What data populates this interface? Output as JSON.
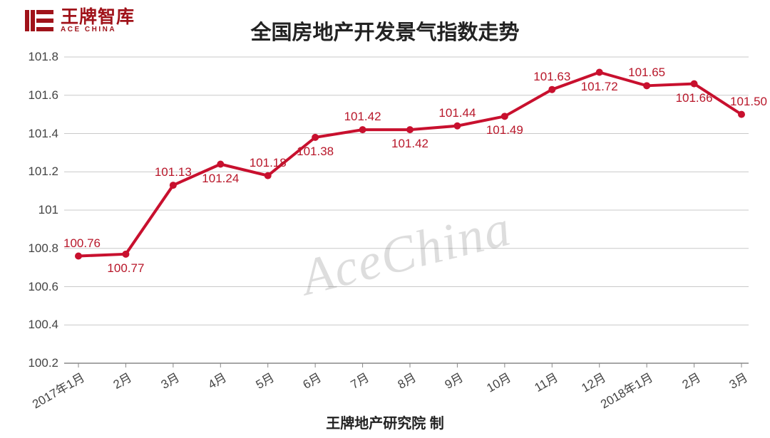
{
  "logo": {
    "cn": "王牌智库",
    "en": "ACE CHINA",
    "color": "#a0131a"
  },
  "title": "全国房地产开发景气指数走势",
  "footer": "王牌地产研究院 制",
  "watermark": "AceChina",
  "chart": {
    "type": "line",
    "background_color": "#ffffff",
    "grid_color": "#c9c9c9",
    "axis_color": "#888888",
    "line_color": "#c8102e",
    "marker_color": "#c8102e",
    "line_width": 4,
    "marker_radius": 5,
    "ylim": [
      100.2,
      101.8
    ],
    "ytick_step": 0.2,
    "yticks": [
      100.2,
      100.4,
      100.6,
      100.8,
      101,
      101.2,
      101.4,
      101.6,
      101.8
    ],
    "categories": [
      "2017年1月",
      "2月",
      "3月",
      "4月",
      "5月",
      "6月",
      "7月",
      "8月",
      "9月",
      "10月",
      "11月",
      "12月",
      "2018年1月",
      "2月",
      "3月"
    ],
    "values": [
      100.76,
      100.77,
      101.13,
      101.24,
      101.18,
      101.38,
      101.42,
      101.42,
      101.44,
      101.49,
      101.63,
      101.72,
      101.65,
      101.66,
      101.5
    ],
    "data_labels": [
      "100.76",
      "100.77",
      "101.13",
      "101.24",
      "101.18",
      "101.38",
      "101.42",
      "101.42",
      "101.44",
      "101.49",
      "101.63",
      "101.72",
      "101.65",
      "101.66",
      "101.50"
    ],
    "label_positions": [
      "above",
      "below",
      "above",
      "below",
      "above",
      "below",
      "above",
      "below",
      "above",
      "below",
      "above",
      "below",
      "above",
      "below",
      "above"
    ],
    "title_fontsize": 29,
    "tick_fontsize": 17,
    "label_fontsize": 17
  }
}
